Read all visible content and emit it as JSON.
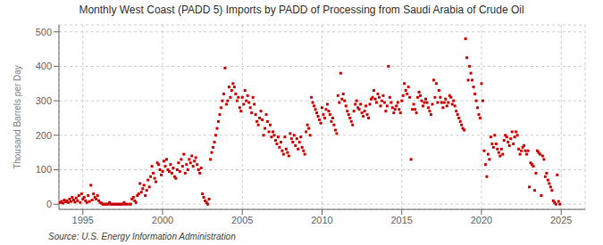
{
  "chart_data": {
    "type": "scatter",
    "title": "Monthly West Coast (PADD 5) Imports by PADD of Processing from Saudi Arabia of Crude Oil",
    "ylabel": "Thousand Barrels per Day",
    "annotations": [
      "Source: U.S. Energy Information Administration"
    ],
    "color": "#cc0000",
    "marker": "square",
    "grid": true,
    "xlim": [
      1993.5,
      2026.5
    ],
    "ylim": [
      -15,
      520
    ],
    "xticks": [
      1995,
      2000,
      2005,
      2010,
      2015,
      2020,
      2025
    ],
    "yticks": [
      0,
      100,
      200,
      300,
      400,
      500
    ],
    "x": [
      1993.583,
      1993.667,
      1993.75,
      1993.833,
      1993.917,
      1994.0,
      1994.083,
      1994.167,
      1994.25,
      1994.333,
      1994.417,
      1994.5,
      1994.583,
      1994.667,
      1994.75,
      1994.833,
      1994.917,
      1995.0,
      1995.083,
      1995.167,
      1995.25,
      1995.333,
      1995.417,
      1995.5,
      1995.583,
      1995.667,
      1995.75,
      1995.833,
      1995.917,
      1996.0,
      1996.083,
      1996.167,
      1996.25,
      1996.333,
      1996.417,
      1996.5,
      1996.583,
      1996.667,
      1996.75,
      1996.833,
      1996.917,
      1997.0,
      1997.083,
      1997.167,
      1997.25,
      1997.333,
      1997.417,
      1997.5,
      1997.583,
      1997.667,
      1997.75,
      1997.917,
      1998.0,
      1998.083,
      1998.167,
      1998.25,
      1998.333,
      1998.417,
      1998.5,
      1998.583,
      1998.667,
      1998.75,
      1998.833,
      1998.917,
      1999.0,
      1999.083,
      1999.167,
      1999.25,
      1999.333,
      1999.417,
      1999.5,
      1999.583,
      1999.667,
      1999.75,
      1999.833,
      1999.917,
      2000.0,
      2000.083,
      2000.167,
      2000.25,
      2000.333,
      2000.417,
      2000.5,
      2000.583,
      2000.667,
      2000.75,
      2000.833,
      2000.917,
      2001.0,
      2001.083,
      2001.167,
      2001.25,
      2001.333,
      2001.417,
      2001.5,
      2001.583,
      2001.667,
      2001.75,
      2001.833,
      2001.917,
      2002.0,
      2002.083,
      2002.167,
      2002.25,
      2002.333,
      2002.417,
      2002.5,
      2002.583,
      2002.667,
      2002.75,
      2002.833,
      2002.917,
      2003.0,
      2003.083,
      2003.167,
      2003.25,
      2003.333,
      2003.417,
      2003.5,
      2003.583,
      2003.667,
      2003.75,
      2003.833,
      2003.917,
      2004.0,
      2004.083,
      2004.167,
      2004.25,
      2004.333,
      2004.417,
      2004.5,
      2004.583,
      2004.667,
      2004.75,
      2004.833,
      2004.917,
      2005.0,
      2005.083,
      2005.167,
      2005.25,
      2005.333,
      2005.417,
      2005.5,
      2005.583,
      2005.667,
      2005.75,
      2005.833,
      2005.917,
      2006.0,
      2006.083,
      2006.167,
      2006.25,
      2006.333,
      2006.417,
      2006.5,
      2006.583,
      2006.667,
      2006.75,
      2006.833,
      2006.917,
      2007.0,
      2007.083,
      2007.167,
      2007.25,
      2007.333,
      2007.417,
      2007.5,
      2007.583,
      2007.667,
      2007.75,
      2007.833,
      2007.917,
      2008.0,
      2008.083,
      2008.167,
      2008.25,
      2008.333,
      2008.417,
      2008.5,
      2008.583,
      2008.667,
      2008.75,
      2008.833,
      2008.917,
      2009.0,
      2009.083,
      2009.167,
      2009.25,
      2009.333,
      2009.417,
      2009.5,
      2009.583,
      2009.667,
      2009.75,
      2009.833,
      2009.917,
      2010.0,
      2010.083,
      2010.167,
      2010.25,
      2010.333,
      2010.417,
      2010.5,
      2010.583,
      2010.667,
      2010.75,
      2010.833,
      2010.917,
      2011.0,
      2011.083,
      2011.167,
      2011.25,
      2011.333,
      2011.417,
      2011.5,
      2011.583,
      2011.667,
      2011.75,
      2011.833,
      2011.917,
      2012.0,
      2012.083,
      2012.167,
      2012.25,
      2012.333,
      2012.417,
      2012.5,
      2012.583,
      2012.667,
      2012.75,
      2012.833,
      2012.917,
      2013.0,
      2013.083,
      2013.167,
      2013.25,
      2013.333,
      2013.417,
      2013.5,
      2013.583,
      2013.667,
      2013.75,
      2013.833,
      2013.917,
      2014.0,
      2014.083,
      2014.167,
      2014.25,
      2014.333,
      2014.417,
      2014.5,
      2014.583,
      2014.667,
      2014.75,
      2014.833,
      2014.917,
      2015.0,
      2015.083,
      2015.167,
      2015.25,
      2015.333,
      2015.417,
      2015.5,
      2015.583,
      2015.667,
      2015.75,
      2015.833,
      2015.917,
      2016.0,
      2016.083,
      2016.167,
      2016.25,
      2016.333,
      2016.417,
      2016.5,
      2016.583,
      2016.667,
      2016.75,
      2016.833,
      2016.917,
      2017.0,
      2017.083,
      2017.167,
      2017.25,
      2017.333,
      2017.417,
      2017.5,
      2017.583,
      2017.667,
      2017.75,
      2017.833,
      2017.917,
      2018.0,
      2018.083,
      2018.167,
      2018.25,
      2018.333,
      2018.417,
      2018.5,
      2018.583,
      2018.667,
      2018.75,
      2018.833,
      2018.917,
      2019.0,
      2019.083,
      2019.167,
      2019.25,
      2019.333,
      2019.417,
      2019.5,
      2019.583,
      2019.667,
      2019.75,
      2019.833,
      2019.917,
      2020.0,
      2020.083,
      2020.167,
      2020.25,
      2020.333,
      2020.417,
      2020.5,
      2020.583,
      2020.667,
      2020.75,
      2020.833,
      2020.917,
      2021.0,
      2021.083,
      2021.167,
      2021.25,
      2021.333,
      2021.417,
      2021.5,
      2021.583,
      2021.667,
      2021.75,
      2021.833,
      2021.917,
      2022.0,
      2022.083,
      2022.167,
      2022.25,
      2022.333,
      2022.417,
      2022.5,
      2022.583,
      2022.667,
      2022.75,
      2022.833,
      2022.917,
      2023.0,
      2023.083,
      2023.167,
      2023.25,
      2023.333,
      2023.417,
      2023.5,
      2023.583,
      2023.667,
      2023.75,
      2023.833,
      2023.917,
      2024.0,
      2024.083,
      2024.167,
      2024.25,
      2024.333,
      2024.417,
      2024.5,
      2024.583,
      2024.667,
      2024.75,
      2024.833,
      2024.917
    ],
    "values": [
      5,
      8,
      3,
      12,
      7,
      10,
      5,
      15,
      8,
      20,
      12,
      6,
      18,
      10,
      25,
      5,
      30,
      15,
      20,
      10,
      5,
      25,
      8,
      55,
      12,
      30,
      20,
      15,
      25,
      10,
      5,
      3,
      0,
      0,
      0,
      0,
      0,
      5,
      0,
      0,
      0,
      0,
      0,
      0,
      0,
      0,
      0,
      0,
      5,
      0,
      0,
      0,
      0,
      15,
      20,
      10,
      5,
      25,
      30,
      60,
      35,
      45,
      55,
      25,
      40,
      70,
      50,
      80,
      110,
      90,
      75,
      65,
      120,
      115,
      100,
      85,
      95,
      125,
      110,
      130,
      100,
      95,
      115,
      90,
      105,
      80,
      75,
      100,
      120,
      95,
      130,
      110,
      145,
      90,
      115,
      100,
      130,
      120,
      140,
      110,
      125,
      135,
      115,
      100,
      90,
      105,
      30,
      20,
      10,
      5,
      0,
      15,
      130,
      150,
      165,
      180,
      200,
      220,
      240,
      260,
      280,
      300,
      320,
      395,
      290,
      300,
      340,
      310,
      330,
      350,
      340,
      320,
      300,
      310,
      280,
      270,
      310,
      290,
      330,
      300,
      315,
      295,
      280,
      265,
      310,
      290,
      260,
      240,
      230,
      250,
      270,
      245,
      200,
      220,
      260,
      240,
      210,
      230,
      195,
      210,
      200,
      185,
      175,
      195,
      165,
      180,
      155,
      145,
      195,
      160,
      150,
      140,
      205,
      190,
      180,
      200,
      170,
      190,
      160,
      180,
      195,
      165,
      155,
      145,
      210,
      230,
      220,
      200,
      310,
      295,
      285,
      275,
      265,
      255,
      245,
      235,
      280,
      260,
      250,
      275,
      290,
      270,
      260,
      240,
      250,
      230,
      215,
      205,
      315,
      295,
      380,
      305,
      320,
      300,
      285,
      270,
      260,
      250,
      240,
      230,
      270,
      290,
      300,
      280,
      275,
      290,
      265,
      255,
      270,
      285,
      260,
      250,
      290,
      305,
      310,
      330,
      305,
      295,
      320,
      310,
      285,
      300,
      315,
      295,
      270,
      285,
      400,
      310,
      295,
      280,
      265,
      275,
      285,
      295,
      275,
      265,
      300,
      315,
      350,
      330,
      320,
      340,
      310,
      130,
      275,
      290,
      275,
      265,
      310,
      325,
      315,
      300,
      285,
      295,
      305,
      295,
      280,
      270,
      260,
      290,
      360,
      310,
      350,
      295,
      330,
      310,
      295,
      280,
      295,
      305,
      285,
      295,
      315,
      310,
      290,
      300,
      285,
      270,
      260,
      250,
      240,
      230,
      220,
      215,
      480,
      425,
      360,
      400,
      380,
      360,
      340,
      320,
      300,
      280,
      260,
      250,
      350,
      300,
      155,
      115,
      80,
      145,
      130,
      195,
      175,
      165,
      200,
      175,
      160,
      150,
      140,
      160,
      145,
      185,
      200,
      195,
      180,
      170,
      190,
      210,
      175,
      195,
      210,
      200,
      160,
      145,
      155,
      165,
      170,
      155,
      145,
      155,
      50,
      120,
      115,
      110,
      40,
      90,
      155,
      150,
      145,
      25,
      140,
      130,
      80,
      90,
      70,
      60,
      50,
      40,
      10,
      5,
      0,
      85,
      8,
      0
    ]
  }
}
